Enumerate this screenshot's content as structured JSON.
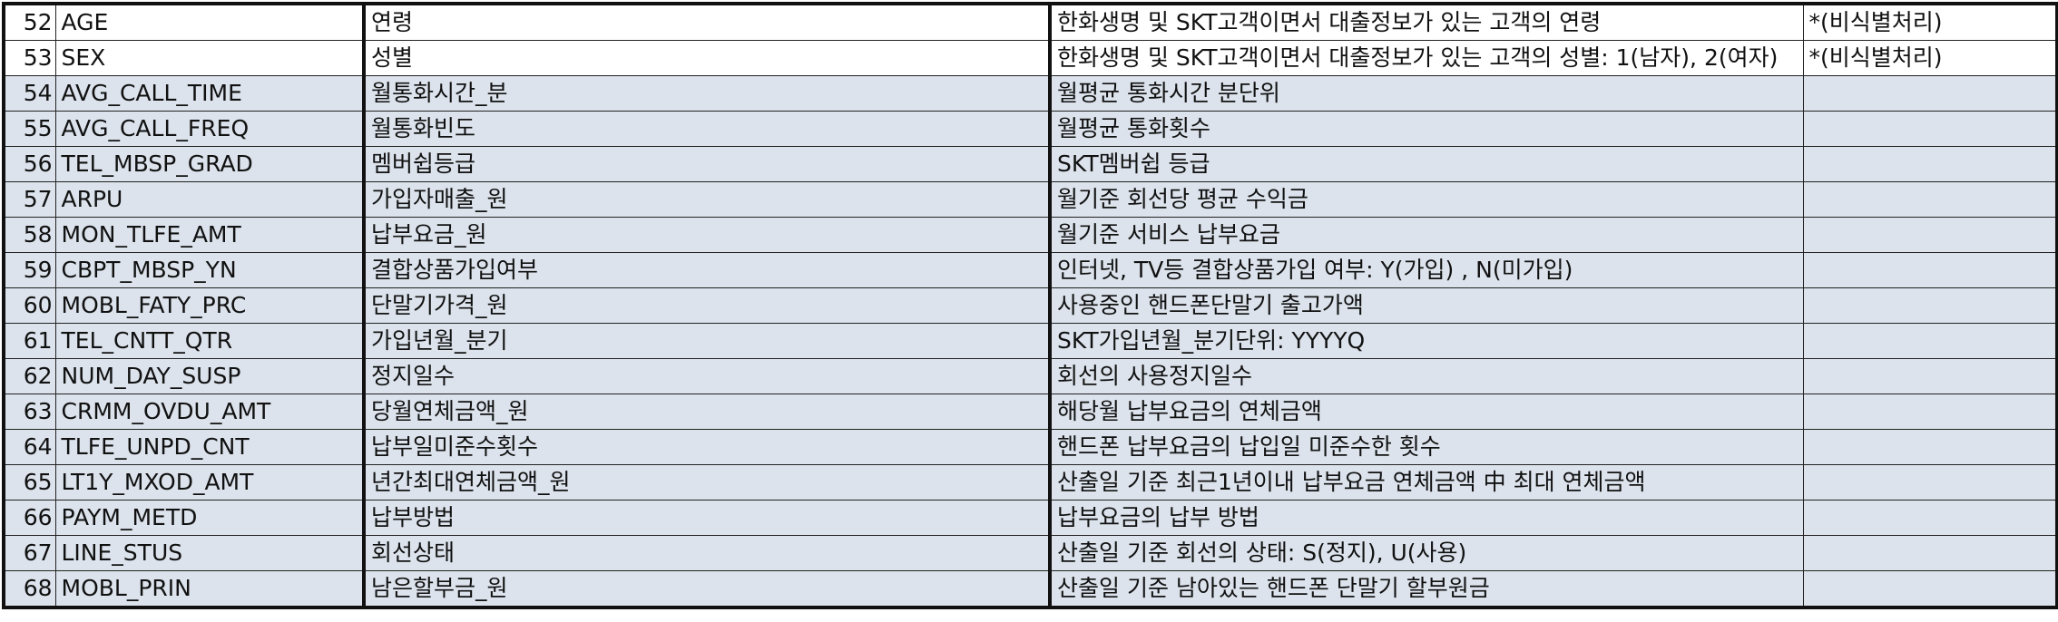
{
  "columns": [
    "no",
    "variable",
    "korean_name",
    "description",
    "note"
  ],
  "rows": [
    {
      "no": "52",
      "variable": "AGE",
      "korean_name": "연령",
      "description": "한화생명 및 SKT고객이면서 대출정보가 있는 고객의 연령",
      "note": "*(비식별처리)",
      "shaded": false
    },
    {
      "no": "53",
      "variable": "SEX",
      "korean_name": "성별",
      "description": "한화생명 및 SKT고객이면서 대출정보가 있는 고객의 성별: 1(남자), 2(여자)",
      "note": "*(비식별처리)",
      "shaded": false
    },
    {
      "no": "54",
      "variable": "AVG_CALL_TIME",
      "korean_name": "월통화시간_분",
      "description": "월평균 통화시간 분단위",
      "note": "",
      "shaded": true
    },
    {
      "no": "55",
      "variable": "AVG_CALL_FREQ",
      "korean_name": "월통화빈도",
      "description": "월평균 통화횟수",
      "note": "",
      "shaded": true
    },
    {
      "no": "56",
      "variable": "TEL_MBSP_GRAD",
      "korean_name": "멤버쉽등급",
      "description": "SKT멤버쉽 등급",
      "note": "",
      "shaded": true
    },
    {
      "no": "57",
      "variable": "ARPU",
      "korean_name": "가입자매출_원",
      "description": "월기준 회선당 평균 수익금",
      "note": "",
      "shaded": true
    },
    {
      "no": "58",
      "variable": "MON_TLFE_AMT",
      "korean_name": "납부요금_원",
      "description": "월기준 서비스 납부요금",
      "note": "",
      "shaded": true
    },
    {
      "no": "59",
      "variable": "CBPT_MBSP_YN",
      "korean_name": "결합상품가입여부",
      "description": "인터넷, TV등 결합상품가입 여부: Y(가입) , N(미가입)",
      "note": "",
      "shaded": true
    },
    {
      "no": "60",
      "variable": "MOBL_FATY_PRC",
      "korean_name": "단말기가격_원",
      "description": "사용중인 핸드폰단말기 출고가액",
      "note": "",
      "shaded": true
    },
    {
      "no": "61",
      "variable": "TEL_CNTT_QTR",
      "korean_name": "가입년월_분기",
      "description": "SKT가입년월_분기단위: YYYYQ",
      "note": "",
      "shaded": true
    },
    {
      "no": "62",
      "variable": "NUM_DAY_SUSP",
      "korean_name": "정지일수",
      "description": "회선의 사용정지일수",
      "note": "",
      "shaded": true
    },
    {
      "no": "63",
      "variable": "CRMM_OVDU_AMT",
      "korean_name": "당월연체금액_원",
      "description": "해당월 납부요금의 연체금액",
      "note": "",
      "shaded": true
    },
    {
      "no": "64",
      "variable": "TLFE_UNPD_CNT",
      "korean_name": "납부일미준수횟수",
      "description": "핸드폰 납부요금의 납입일 미준수한 횟수",
      "note": "",
      "shaded": true
    },
    {
      "no": "65",
      "variable": "LT1Y_MXOD_AMT",
      "korean_name": "년간최대연체금액_원",
      "description": "산출일 기준 최근1년이내 납부요금 연체금액 中 최대 연체금액",
      "note": "",
      "shaded": true
    },
    {
      "no": "66",
      "variable": "PAYM_METD",
      "korean_name": "납부방법",
      "description": "납부요금의 납부 방법",
      "note": "",
      "shaded": true
    },
    {
      "no": "67",
      "variable": "LINE_STUS",
      "korean_name": "회선상태",
      "description": "산출일 기준 회선의 상태: S(정지), U(사용)",
      "note": "",
      "shaded": true
    },
    {
      "no": "68",
      "variable": "MOBL_PRIN",
      "korean_name": "남은할부금_원",
      "description": "산출일 기준 남아있는 핸드폰 단말기 할부원금",
      "note": "",
      "shaded": true
    }
  ],
  "colors": {
    "shaded_row": "#dce3ec",
    "border": "#111111"
  }
}
